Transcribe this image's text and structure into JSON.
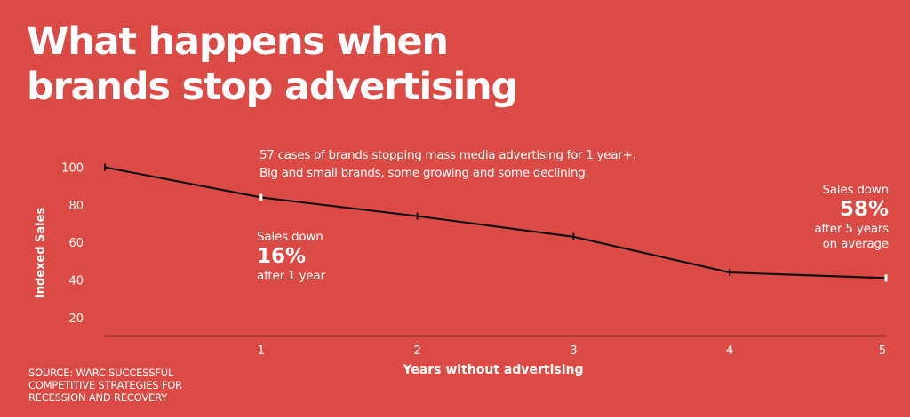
{
  "title": {
    "line1": "What happens when",
    "line2": "brands stop advertising"
  },
  "subtitle": {
    "line1": "57 cases of brands stopping mass media advertising for 1 year+.",
    "line2": "Big and small brands, some growing and some declining."
  },
  "annotations": {
    "left": {
      "prefix": "Sales down",
      "value": "16%",
      "suffix": "after 1 year"
    },
    "right": {
      "prefix": "Sales down",
      "value": "58%",
      "suffix1": "after 5 years",
      "suffix2": "on average"
    }
  },
  "source": {
    "line1": "SOURCE: WARC SUCCESSFUL",
    "line2": "COMPETITIVE STRATEGIES FOR",
    "line3": "RECESSION AND RECOVERY"
  },
  "colors": {
    "background": "#dc4a45",
    "line": "#111111",
    "text": "#ffffff",
    "axis": "#8a2a26"
  },
  "chart_data": {
    "type": "line",
    "title": "What happens when brands stop advertising",
    "xlabel": "Years without advertising",
    "ylabel": "Indexed Sales",
    "x": [
      0,
      1,
      2,
      3,
      4,
      5
    ],
    "series": [
      {
        "values": [
          100,
          84,
          74,
          63,
          44,
          41
        ]
      }
    ],
    "xlim": [
      0,
      5
    ],
    "ylim": [
      10,
      105
    ],
    "x_ticks": [
      1,
      2,
      3,
      4,
      5
    ],
    "x_tick_labels": [
      "1",
      "2",
      "3",
      "4",
      "5"
    ],
    "y_ticks": [
      20,
      40,
      60,
      80,
      100
    ],
    "y_tick_labels": [
      "20",
      "40",
      "60",
      "80",
      "100"
    ],
    "grid": false,
    "legend": "none"
  }
}
